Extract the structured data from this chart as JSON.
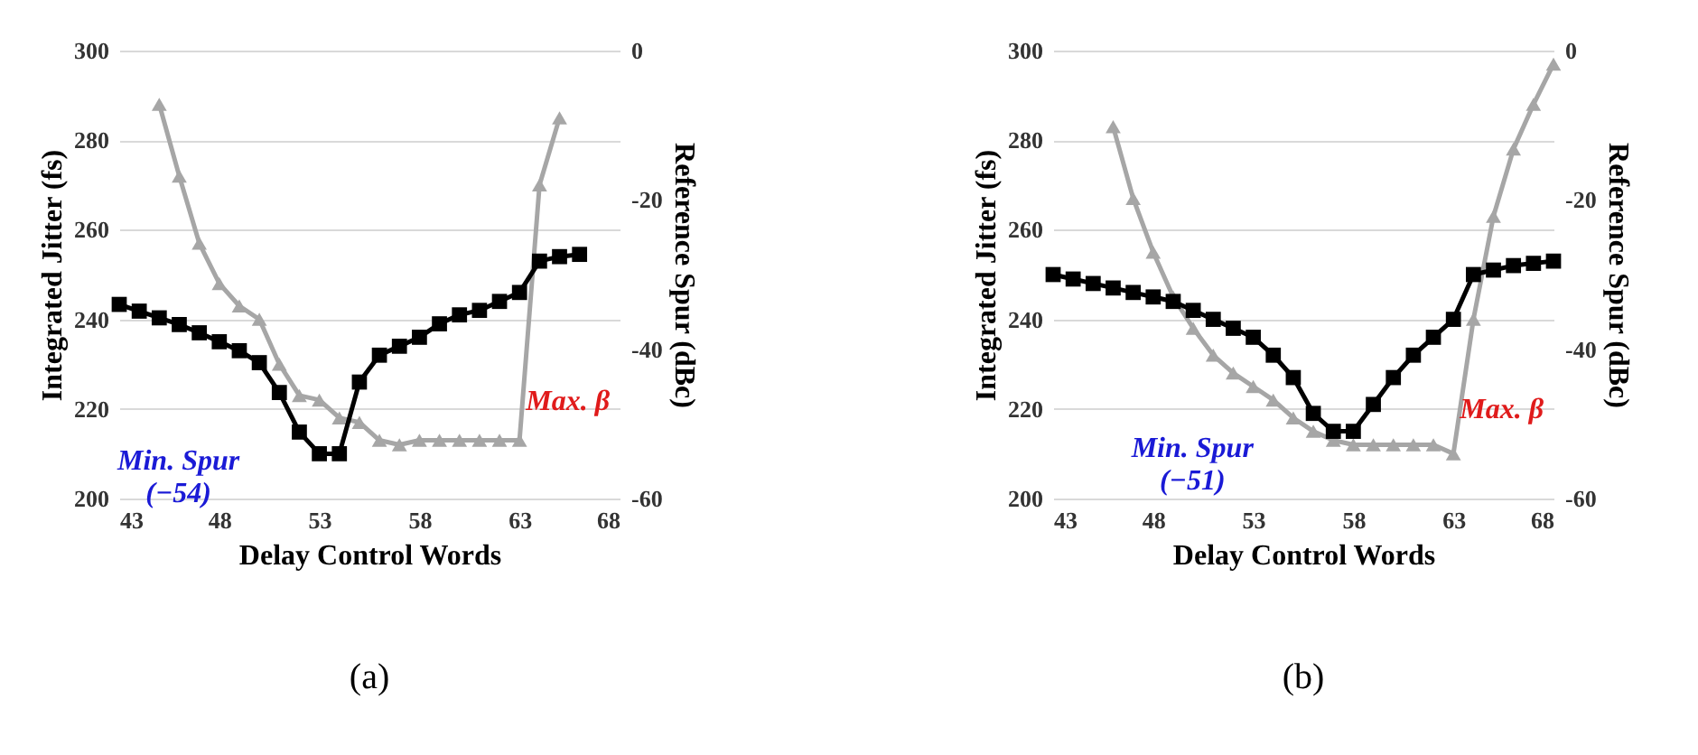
{
  "chart_data": [
    {
      "type": "line",
      "xlabel": "Delay Control Words",
      "ylabel": "Integrated Jitter (fs)",
      "y2label": "Reference Spur (dBc)",
      "xlim": [
        43,
        68
      ],
      "xticks": [
        43,
        48,
        53,
        58,
        63,
        68
      ],
      "ylim": [
        200,
        300
      ],
      "yticks": [
        200,
        220,
        240,
        260,
        280,
        300
      ],
      "y2lim": [
        -60,
        0
      ],
      "y2ticks": [
        -60,
        -40,
        -20,
        0
      ],
      "grid": "y",
      "series": [
        {
          "color": "#a6a6a6",
          "marker": "triangle",
          "x": [
            45,
            46,
            47,
            48,
            49,
            50,
            51,
            52,
            53,
            54,
            55,
            56,
            57,
            58,
            59,
            60,
            61,
            62,
            63,
            64,
            65
          ],
          "values": [
            288,
            272,
            257,
            248,
            243,
            240,
            230,
            223,
            222,
            218,
            217,
            213,
            212,
            213,
            213,
            213,
            213,
            213,
            213,
            270,
            285
          ]
        },
        {
          "color": "#000000",
          "marker": "square",
          "axis": "y2",
          "x": [
            43,
            44,
            45,
            46,
            47,
            48,
            49,
            50,
            51,
            52,
            53,
            54,
            55,
            56,
            57,
            58,
            59,
            60,
            61,
            62,
            63,
            64,
            65,
            66
          ],
          "values": [
            -34,
            -34.9,
            -35.8,
            -36.7,
            -37.8,
            -39,
            -40.2,
            -41.8,
            -45.8,
            -51.1,
            -54,
            -54,
            -44.4,
            -40.8,
            -39.6,
            -38.4,
            -36.6,
            -35.4,
            -34.8,
            -33.6,
            -32.4,
            -28.2,
            -27.6,
            -27.3
          ]
        }
      ],
      "annotations": [
        {
          "text": "Min. Spur\n(−54)",
          "x": 53,
          "y": 210
        },
        {
          "text": "Max. β",
          "x": 60,
          "y": 213
        },
        "(a)"
      ]
    },
    {
      "type": "line",
      "xlabel": "Delay Control Words",
      "ylabel": "Integrated Jitter (fs)",
      "y2label": "Reference Spur (dBc)",
      "xlim": [
        43,
        68
      ],
      "xticks": [
        43,
        48,
        53,
        58,
        63,
        68
      ],
      "ylim": [
        200,
        300
      ],
      "yticks": [
        200,
        220,
        240,
        260,
        280,
        300
      ],
      "y2lim": [
        -60,
        0
      ],
      "y2ticks": [
        -60,
        -40,
        -20,
        0
      ],
      "grid": "y",
      "series": [
        {
          "color": "#a6a6a6",
          "marker": "triangle",
          "x": [
            46,
            47,
            48,
            49,
            50,
            51,
            52,
            53,
            54,
            55,
            56,
            57,
            58,
            59,
            60,
            61,
            62,
            63,
            64,
            65,
            66,
            67,
            68
          ],
          "values": [
            283,
            267,
            255,
            245,
            238,
            232,
            228,
            225,
            222,
            218,
            215,
            213,
            212,
            212,
            212,
            212,
            212,
            210,
            240,
            263,
            278,
            288,
            297
          ]
        },
        {
          "color": "#000000",
          "marker": "square",
          "axis": "y2",
          "x": [
            43,
            44,
            45,
            46,
            47,
            48,
            49,
            50,
            51,
            52,
            53,
            54,
            55,
            56,
            57,
            58,
            59,
            60,
            61,
            62,
            63,
            64,
            65,
            66,
            67,
            68
          ],
          "values": [
            -30,
            -30.6,
            -31.2,
            -31.8,
            -32.4,
            -33,
            -33.6,
            -34.8,
            -36,
            -37.2,
            -38.4,
            -40.8,
            -43.8,
            -48.6,
            -51,
            -51,
            -47.4,
            -43.8,
            -40.8,
            -38.4,
            -36,
            -30,
            -29.4,
            -28.8,
            -28.5,
            -28.2
          ]
        }
      ],
      "annotations": [
        {
          "text": "Min. Spur\n(−51)",
          "x": 57,
          "y": 213
        },
        {
          "text": "Max. β",
          "x": 60,
          "y": 211
        },
        "(b)"
      ]
    }
  ]
}
